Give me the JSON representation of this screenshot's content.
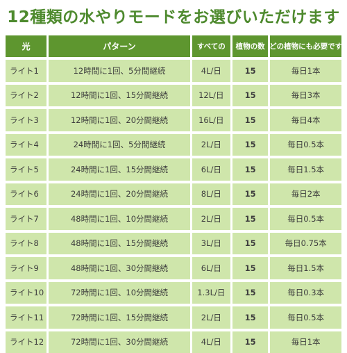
{
  "title": "12種類の水やりモードをお選びいただけます",
  "header": {
    "light": "光",
    "pattern": "パターン",
    "amount": "すべての",
    "plants": "植物の数",
    "daily": "どの植物にも必要です"
  },
  "rows": [
    {
      "light": "ライト1",
      "pattern": "12時間に1回、5分間継続",
      "amount": "4L/日",
      "plants": "15",
      "daily": "毎日1本"
    },
    {
      "light": "ライト2",
      "pattern": "12時間に1回、15分間継続",
      "amount": "12L/日",
      "plants": "15",
      "daily": "毎日3本"
    },
    {
      "light": "ライト3",
      "pattern": "12時間に1回、20分間継続",
      "amount": "16L/日",
      "plants": "15",
      "daily": "毎日4本"
    },
    {
      "light": "ライト4",
      "pattern": "24時間に1回、5分間継続",
      "amount": "2L/日",
      "plants": "15",
      "daily": "毎日0.5本"
    },
    {
      "light": "ライト5",
      "pattern": "24時間に1回、15分間継続",
      "amount": "6L/日",
      "plants": "15",
      "daily": "毎日1.5本"
    },
    {
      "light": "ライト6",
      "pattern": "24時間に1回、20分間継続",
      "amount": "8L/日",
      "plants": "15",
      "daily": "毎日2本"
    },
    {
      "light": "ライト7",
      "pattern": "48時間に1回、10分間継続",
      "amount": "2L/日",
      "plants": "15",
      "daily": "毎日0.5本"
    },
    {
      "light": "ライト8",
      "pattern": "48時間に1回、15分間継続",
      "amount": "3L/日",
      "plants": "15",
      "daily": "毎日0.75本"
    },
    {
      "light": "ライト9",
      "pattern": "48時間に1回、30分間継続",
      "amount": "6L/日",
      "plants": "15",
      "daily": "毎日1.5本"
    },
    {
      "light": "ライト10",
      "pattern": "72時間に1回、10分間継続",
      "amount": "1.3L/日",
      "plants": "15",
      "daily": "毎日0.3本"
    },
    {
      "light": "ライト11",
      "pattern": "72時間に1回、15分間継続",
      "amount": "2L/日",
      "plants": "15",
      "daily": "毎日0.5本"
    },
    {
      "light": "ライト12",
      "pattern": "72時間に1回、30分間継続",
      "amount": "4L/日",
      "plants": "15",
      "daily": "毎日1本"
    }
  ],
  "colors": {
    "title": "#4e8a2e",
    "header_bg": "#5e962f",
    "cell_bg": "#cfe6ab"
  }
}
